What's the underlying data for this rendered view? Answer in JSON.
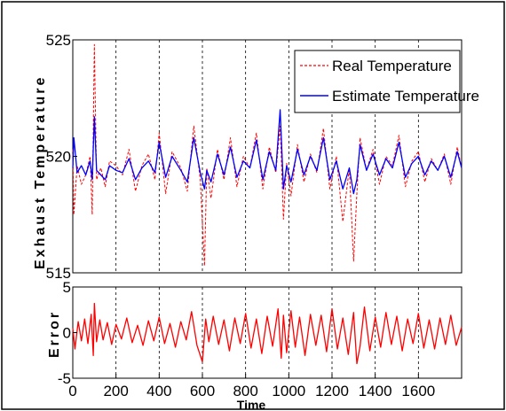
{
  "chart_data": [
    {
      "type": "line",
      "ylabel": "Exhaust Temperature",
      "xlim": [
        0,
        1800
      ],
      "ylim": [
        515,
        525
      ],
      "yticks": [
        515,
        520,
        525
      ],
      "xgrid": [
        200,
        400,
        600,
        800,
        1000,
        1200,
        1400,
        1600
      ],
      "grid": "vertical dashed",
      "legend_position": "top-right",
      "series": [
        {
          "name": "Real Temperature",
          "color": "#ff0000",
          "style": "dashed",
          "x": [
            0,
            5,
            20,
            40,
            60,
            80,
            90,
            100,
            110,
            130,
            150,
            170,
            200,
            230,
            260,
            290,
            320,
            350,
            380,
            400,
            430,
            460,
            500,
            530,
            560,
            590,
            610,
            620,
            640,
            670,
            700,
            730,
            760,
            790,
            820,
            850,
            880,
            910,
            940,
            960,
            975,
            990,
            1010,
            1040,
            1070,
            1100,
            1130,
            1160,
            1190,
            1220,
            1250,
            1280,
            1300,
            1315,
            1330,
            1360,
            1390,
            1420,
            1450,
            1480,
            1510,
            1540,
            1570,
            1600,
            1630,
            1660,
            1690,
            1720,
            1750,
            1780,
            1800
          ],
          "y": [
            520.3,
            517.5,
            519.6,
            518.8,
            519.2,
            520.0,
            517.5,
            524.8,
            519.0,
            519.5,
            518.7,
            519.8,
            519.6,
            519.2,
            520.3,
            518.5,
            519.6,
            520.1,
            519.0,
            521.0,
            518.4,
            520.2,
            519.5,
            518.5,
            521.3,
            519.0,
            515.3,
            519.5,
            518.2,
            520.3,
            519.0,
            520.8,
            518.7,
            520.0,
            519.5,
            521.0,
            518.6,
            520.4,
            519.3,
            521.3,
            517.3,
            519.7,
            518.3,
            520.5,
            518.9,
            520.1,
            519.3,
            521.2,
            518.6,
            520.0,
            517.2,
            519.5,
            515.5,
            518.4,
            520.8,
            519.4,
            520.3,
            518.8,
            520.0,
            519.6,
            520.9,
            518.7,
            519.8,
            520.2,
            518.9,
            519.9,
            519.4,
            520.1,
            518.8,
            520.4,
            519.5
          ]
        },
        {
          "name": "Estimate Temperature",
          "color": "#0000ff",
          "style": "solid",
          "x": [
            0,
            5,
            20,
            40,
            60,
            80,
            90,
            100,
            110,
            130,
            150,
            170,
            200,
            230,
            260,
            290,
            320,
            350,
            380,
            400,
            430,
            460,
            500,
            530,
            560,
            590,
            610,
            620,
            640,
            670,
            700,
            730,
            760,
            790,
            820,
            850,
            880,
            910,
            940,
            960,
            975,
            990,
            1010,
            1040,
            1070,
            1100,
            1130,
            1160,
            1190,
            1220,
            1250,
            1280,
            1300,
            1315,
            1330,
            1360,
            1390,
            1420,
            1450,
            1480,
            1510,
            1540,
            1570,
            1600,
            1630,
            1660,
            1690,
            1720,
            1750,
            1780,
            1800
          ],
          "y": [
            519.5,
            520.8,
            519.3,
            519.6,
            519.2,
            519.8,
            519.0,
            521.7,
            519.4,
            519.2,
            519.0,
            519.6,
            519.4,
            519.3,
            519.9,
            519.0,
            519.5,
            519.8,
            519.3,
            520.6,
            519.1,
            520.0,
            519.4,
            518.9,
            520.8,
            519.3,
            518.6,
            519.4,
            518.9,
            520.1,
            519.2,
            520.4,
            519.1,
            519.8,
            519.5,
            520.7,
            519.0,
            520.2,
            519.4,
            522.0,
            518.6,
            519.6,
            518.9,
            520.3,
            519.2,
            520.0,
            519.4,
            520.8,
            519.0,
            519.8,
            518.6,
            519.5,
            518.4,
            519.0,
            520.5,
            519.4,
            520.1,
            519.2,
            519.9,
            519.5,
            520.6,
            519.1,
            519.7,
            520.0,
            519.2,
            519.8,
            519.4,
            520.0,
            519.1,
            520.2,
            519.5
          ]
        }
      ]
    },
    {
      "type": "line",
      "ylabel": "Error",
      "xlabel": "Time",
      "xlim": [
        0,
        1800
      ],
      "ylim": [
        -5,
        5
      ],
      "yticks": [
        -5,
        0,
        5
      ],
      "xticks": [
        0,
        200,
        400,
        600,
        800,
        1000,
        1200,
        1400,
        1600
      ],
      "xgrid": [
        200,
        400,
        600,
        800,
        1000,
        1200,
        1400,
        1600
      ],
      "grid": "vertical dashed",
      "series": [
        {
          "color": "#ff0000",
          "style": "solid",
          "x": [
            0,
            10,
            25,
            40,
            55,
            70,
            85,
            95,
            100,
            110,
            125,
            140,
            160,
            180,
            200,
            225,
            250,
            275,
            300,
            325,
            350,
            375,
            400,
            425,
            450,
            475,
            500,
            525,
            550,
            575,
            600,
            615,
            630,
            650,
            675,
            700,
            725,
            750,
            775,
            800,
            825,
            850,
            875,
            900,
            925,
            950,
            965,
            975,
            990,
            1010,
            1030,
            1050,
            1075,
            1100,
            1125,
            1150,
            1175,
            1200,
            1225,
            1250,
            1275,
            1300,
            1315,
            1330,
            1350,
            1375,
            1400,
            1425,
            1450,
            1475,
            1500,
            1525,
            1550,
            1575,
            1600,
            1625,
            1650,
            1675,
            1700,
            1725,
            1750,
            1775,
            1800
          ],
          "y": [
            0.5,
            -1.8,
            1.2,
            -0.9,
            1.5,
            -1.2,
            2.0,
            -2.5,
            3.2,
            -1.0,
            1.4,
            -0.8,
            1.1,
            -1.3,
            0.9,
            -0.7,
            1.6,
            -1.1,
            0.8,
            -1.4,
            1.3,
            -0.9,
            1.7,
            -1.2,
            1.0,
            -1.6,
            1.2,
            -0.8,
            2.3,
            -1.4,
            -3.2,
            1.5,
            -1.0,
            1.8,
            -1.3,
            1.4,
            -2.0,
            1.6,
            -1.2,
            2.1,
            -1.7,
            1.5,
            -2.3,
            1.8,
            -1.5,
            2.6,
            -2.8,
            1.9,
            -2.2,
            2.4,
            -1.6,
            1.7,
            -2.5,
            2.0,
            -1.4,
            1.9,
            -2.1,
            2.6,
            -1.8,
            1.6,
            -2.4,
            2.2,
            -3.4,
            -1.5,
            2.8,
            -2.0,
            1.7,
            -1.6,
            2.2,
            -1.3,
            1.8,
            -2.0,
            1.5,
            -1.2,
            2.1,
            -1.7,
            1.4,
            -1.8,
            1.6,
            -1.3,
            1.9,
            -1.4,
            0.6
          ]
        }
      ]
    }
  ]
}
